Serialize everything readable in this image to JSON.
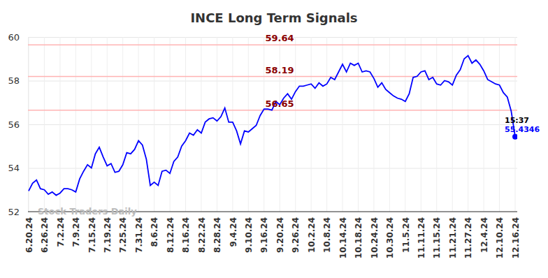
{
  "chart_data": {
    "type": "line",
    "title": "INCE Long Term Signals",
    "watermark": "Stock Traders Daily",
    "last_time": "15:37",
    "color": "#0000ff",
    "grid": true,
    "ylim": [
      52,
      60
    ],
    "yticks": [
      52,
      54,
      56,
      58,
      60
    ],
    "levels": [
      59.64,
      58.19,
      56.65
    ],
    "categories": [
      "6.20.24",
      null,
      null,
      null,
      "6.26.24",
      null,
      null,
      null,
      "7.2.24",
      null,
      null,
      null,
      "7.9.24",
      null,
      null,
      null,
      "7.15.24",
      null,
      null,
      null,
      "7.19.24",
      null,
      null,
      null,
      "7.25.24",
      null,
      null,
      null,
      "7.31.24",
      null,
      null,
      null,
      "8.6.24",
      null,
      null,
      null,
      "8.12.24",
      null,
      null,
      null,
      "8.16.24",
      null,
      null,
      null,
      "8.22.24",
      null,
      null,
      null,
      "8.28.24",
      null,
      null,
      null,
      "9.4.24",
      null,
      null,
      null,
      "9.10.24",
      null,
      null,
      null,
      "9.16.24",
      null,
      null,
      null,
      "9.20.24",
      null,
      null,
      null,
      "9.26.24",
      null,
      null,
      null,
      "10.2.24",
      null,
      null,
      null,
      "10.8.24",
      null,
      null,
      null,
      "10.14.24",
      null,
      null,
      null,
      "10.18.24",
      null,
      null,
      null,
      "10.24.24",
      null,
      null,
      null,
      "10.30.24",
      null,
      null,
      null,
      "11.5.24",
      null,
      null,
      null,
      "11.11.24",
      null,
      null,
      null,
      "11.15.24",
      null,
      null,
      null,
      "11.21.24",
      null,
      null,
      null,
      "11.27.24",
      null,
      null,
      null,
      "12.4.24",
      null,
      null,
      null,
      "12.10.24",
      null,
      null,
      null,
      "12.16.24"
    ],
    "values": [
      52.95,
      53.3,
      53.45,
      53.05,
      53.0,
      52.8,
      52.9,
      52.75,
      52.85,
      53.05,
      53.05,
      53.0,
      52.9,
      53.5,
      53.85,
      54.15,
      54.0,
      54.65,
      54.95,
      54.5,
      54.1,
      54.2,
      53.8,
      53.85,
      54.15,
      54.7,
      54.65,
      54.85,
      55.25,
      55.05,
      54.4,
      53.2,
      53.35,
      53.2,
      53.85,
      53.9,
      53.75,
      54.3,
      54.5,
      55.0,
      55.25,
      55.6,
      55.5,
      55.75,
      55.6,
      56.1,
      56.25,
      56.3,
      56.15,
      56.35,
      56.75,
      56.1,
      56.1,
      55.7,
      55.1,
      55.7,
      55.65,
      55.8,
      55.95,
      56.4,
      56.7,
      56.7,
      56.65,
      57.05,
      56.9,
      57.2,
      57.4,
      57.15,
      57.5,
      57.75,
      57.75,
      57.8,
      57.85,
      57.65,
      57.9,
      57.75,
      57.85,
      58.15,
      58.05,
      58.4,
      58.75,
      58.4,
      58.8,
      58.7,
      58.8,
      58.4,
      58.45,
      58.4,
      58.1,
      57.7,
      57.9,
      57.6,
      57.45,
      57.3,
      57.2,
      57.15,
      57.05,
      57.4,
      58.15,
      58.2,
      58.4,
      58.45,
      58.05,
      58.15,
      57.85,
      57.8,
      58.0,
      57.95,
      57.8,
      58.25,
      58.5,
      59.0,
      59.15,
      58.8,
      58.95,
      58.75,
      58.45,
      58.05,
      57.95,
      57.85,
      57.8,
      57.45,
      57.25,
      56.6,
      55.4346
    ]
  }
}
